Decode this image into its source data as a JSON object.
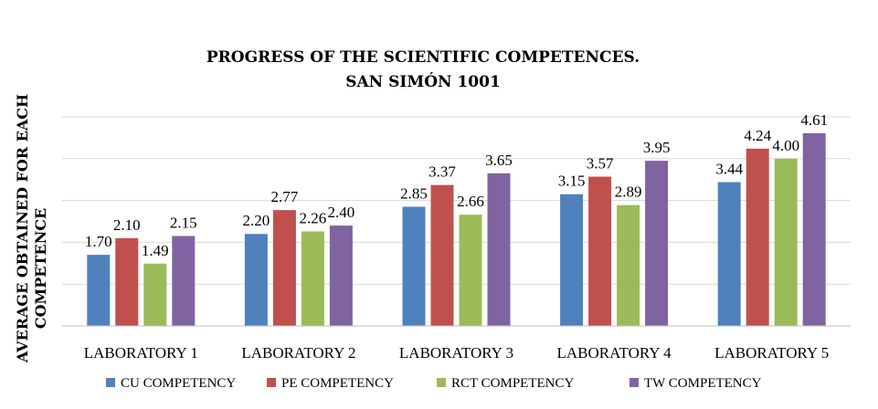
{
  "chart_data": {
    "type": "bar",
    "title": [
      "PROGRESS OF THE SCIENTIFIC COMPETENCES.",
      "SAN SIMÓN 1001"
    ],
    "xlabel": "",
    "ylabel": [
      "AVERAGE OBTAINED FOR EACH",
      "COMPETENCE"
    ],
    "categories": [
      "LABORATORY 1",
      "LABORATORY 2",
      "LABORATORY 3",
      "LABORATORY 4",
      "LABORATORY 5"
    ],
    "series": [
      {
        "name": "CU COMPETENCY",
        "color": "#4F81BD",
        "values": [
          1.7,
          2.2,
          2.85,
          3.15,
          3.44
        ],
        "labels": [
          "1.70",
          "2.20",
          "2.85",
          "3.15",
          "3.44"
        ]
      },
      {
        "name": "PE COMPETENCY",
        "color": "#C0504D",
        "values": [
          2.1,
          2.77,
          3.37,
          3.57,
          4.24
        ],
        "labels": [
          "2.10",
          "2.77",
          "3.37",
          "3.57",
          "4.24"
        ]
      },
      {
        "name": "RCT COMPETENCY",
        "color": "#9BBB59",
        "values": [
          1.49,
          2.26,
          2.66,
          2.89,
          4.0
        ],
        "labels": [
          "1.49",
          "2.26",
          "2.66",
          "2.89",
          "4.00"
        ]
      },
      {
        "name": "TW COMPETENCY",
        "color": "#8064A2",
        "values": [
          2.15,
          2.4,
          3.65,
          3.95,
          4.61
        ],
        "labels": [
          "2.15",
          "2.40",
          "3.65",
          "3.95",
          "4.61"
        ]
      }
    ],
    "ylim": [
      0,
      5
    ],
    "yticks_visible": false,
    "grid": true,
    "legend": "bottom"
  }
}
